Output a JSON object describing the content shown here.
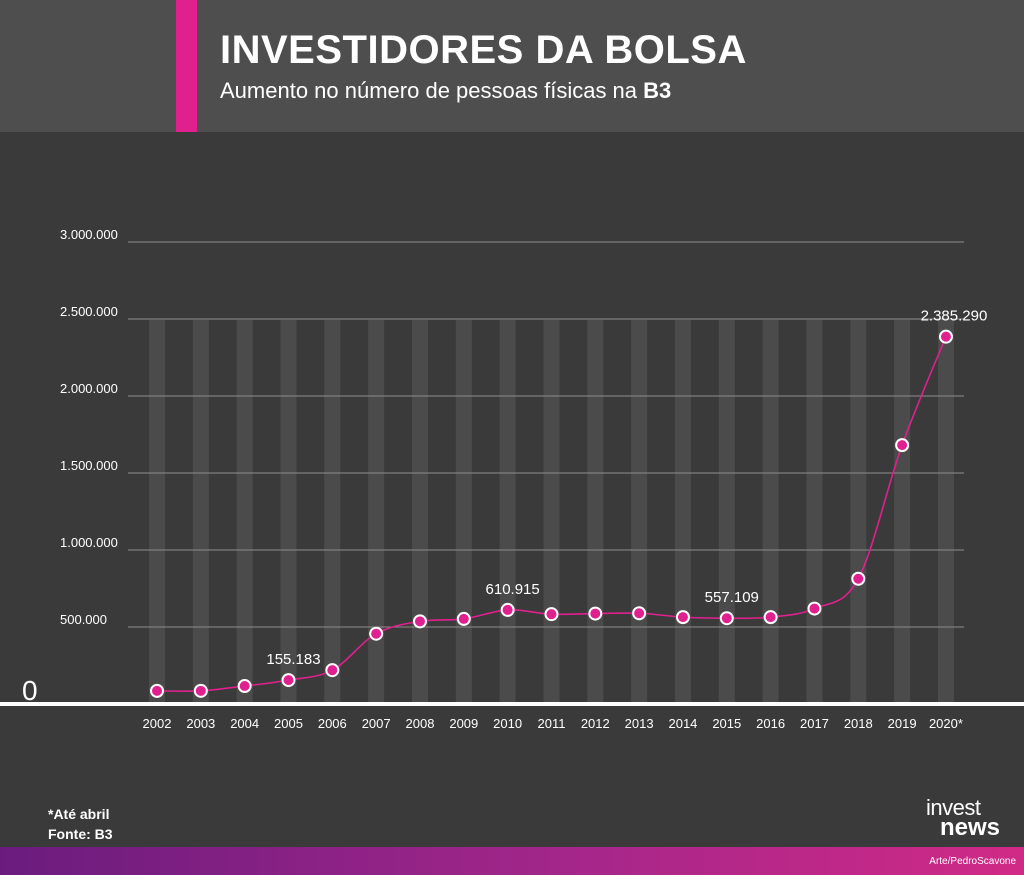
{
  "header": {
    "title": "INVESTIDORES DA BOLSA",
    "subtitle_prefix": "Aumento no número de pessoas físicas na ",
    "subtitle_bold": "B3"
  },
  "colors": {
    "accent": "#e0208f",
    "background": "#3a3a3a",
    "header_bg": "#4e4e4e",
    "line": "#e0208f"
  },
  "chart_data": {
    "type": "line",
    "x": [
      "2002",
      "2003",
      "2004",
      "2005",
      "2006",
      "2007",
      "2008",
      "2009",
      "2010",
      "2011",
      "2012",
      "2013",
      "2014",
      "2015",
      "2016",
      "2017",
      "2018",
      "2019",
      "2020*"
    ],
    "series": [
      {
        "values": [
          85249,
          85478,
          116914,
          155183,
          219634,
          456557,
          536483,
          552364,
          610915,
          583202,
          587165,
          589276,
          564116,
          557109,
          564024,
          619625,
          813291,
          1681033,
          2385290
        ]
      }
    ],
    "data_labels": [
      {
        "index": 3,
        "text": "155.183"
      },
      {
        "index": 8,
        "text": "610.915"
      },
      {
        "index": 13,
        "text": "557.109"
      },
      {
        "index": 18,
        "text": "2.385.290"
      }
    ],
    "y_ticks": [
      {
        "value": 500000,
        "label": "500.000"
      },
      {
        "value": 1000000,
        "label": "1.000.000"
      },
      {
        "value": 1500000,
        "label": "1.500.000"
      },
      {
        "value": 2000000,
        "label": "2.000.000"
      },
      {
        "value": 2500000,
        "label": "2.500.000"
      },
      {
        "value": 3000000,
        "label": "3.000.000"
      }
    ],
    "zero_label": "0",
    "ylim": [
      0,
      3000000
    ],
    "grid": true
  },
  "footer": {
    "note": "*Até abril",
    "source": "Fonte: B3",
    "logo_line1": "invest",
    "logo_line2": "news",
    "credit": "Arte/PedroScavone"
  }
}
